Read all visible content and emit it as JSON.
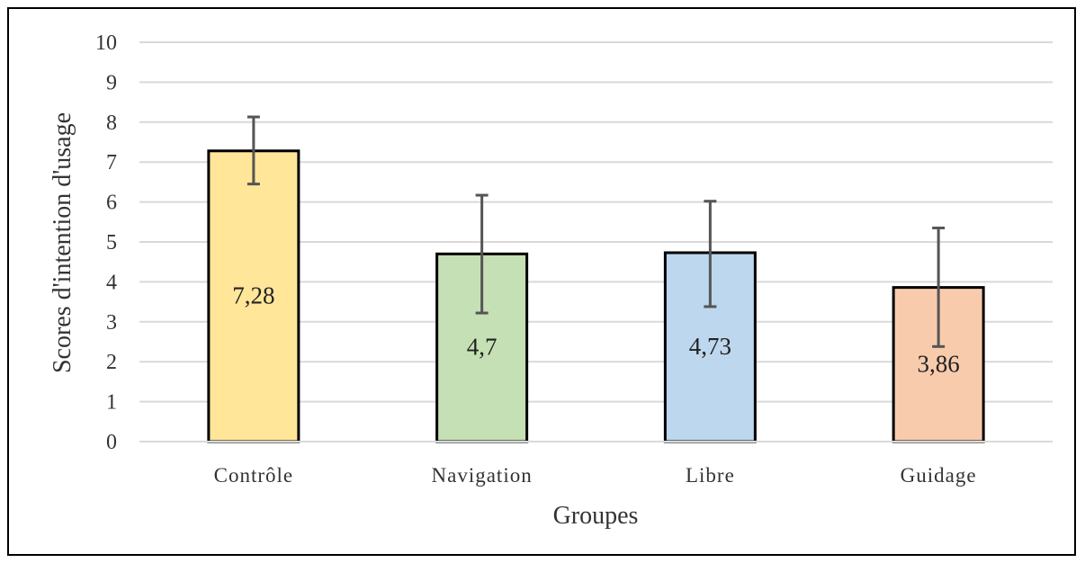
{
  "chart_data": {
    "type": "bar",
    "title": "",
    "xlabel": "Groupes",
    "ylabel": "Scores d'intention d'usage",
    "ylim": [
      0,
      10
    ],
    "yticks": [
      "0",
      "1",
      "2",
      "3",
      "4",
      "5",
      "6",
      "7",
      "8",
      "9",
      "10"
    ],
    "categories": [
      "Contrôle",
      "Navigation",
      "Libre",
      "Guidage"
    ],
    "values": [
      7.28,
      4.7,
      4.73,
      3.86
    ],
    "value_labels": [
      "7,28",
      "4,7",
      "4,73",
      "3,86"
    ],
    "error_bars": [
      {
        "low": 6.45,
        "high": 8.13
      },
      {
        "low": 3.22,
        "high": 6.17
      },
      {
        "low": 3.38,
        "high": 6.02
      },
      {
        "low": 2.38,
        "high": 5.35
      }
    ],
    "colors": [
      "#FFE699",
      "#C5E0B4",
      "#BDD7EE",
      "#F8CBAD"
    ],
    "grid": true,
    "legend": "none"
  }
}
